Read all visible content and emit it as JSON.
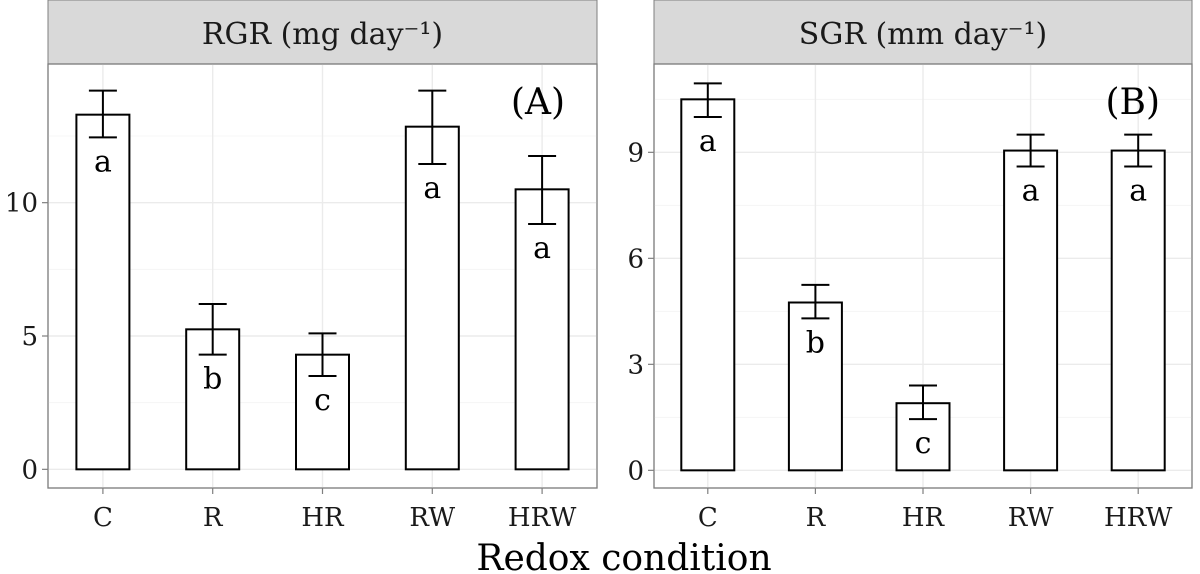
{
  "chart_data": [
    {
      "type": "bar",
      "title": "RGR (mg day⁻¹)",
      "panel_tag": "(A)",
      "categories": [
        "C",
        "R",
        "HR",
        "RW",
        "HRW"
      ],
      "values": [
        13.3,
        5.25,
        4.3,
        12.85,
        10.5
      ],
      "error_low": [
        12.45,
        4.3,
        3.5,
        11.45,
        9.2
      ],
      "error_high": [
        14.2,
        6.2,
        5.1,
        14.2,
        11.75
      ],
      "letters": [
        "a",
        "b",
        "c",
        "a",
        "a"
      ],
      "ylim": [
        -0.7,
        15.2
      ],
      "yticks": [
        0,
        5,
        10
      ],
      "ytick_labels": [
        "0",
        "5",
        "10"
      ]
    },
    {
      "type": "bar",
      "title": "SGR (mm day⁻¹)",
      "panel_tag": "(B)",
      "categories": [
        "C",
        "R",
        "HR",
        "RW",
        "HRW"
      ],
      "values": [
        10.5,
        4.75,
        1.9,
        9.05,
        9.05
      ],
      "error_low": [
        10.0,
        4.3,
        1.45,
        8.6,
        8.6
      ],
      "error_high": [
        10.95,
        5.25,
        2.4,
        9.5,
        9.5
      ],
      "letters": [
        "a",
        "b",
        "c",
        "a",
        "a"
      ],
      "ylim": [
        -0.5,
        11.5
      ],
      "yticks": [
        0,
        3,
        6,
        9
      ],
      "ytick_labels": [
        "0",
        "3",
        "6",
        "9"
      ]
    }
  ],
  "xlabel": "Redox condition"
}
